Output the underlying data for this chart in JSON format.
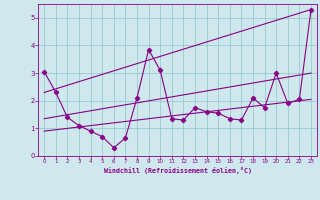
{
  "xlabel": "Windchill (Refroidissement éolien,°C)",
  "ylabel": "",
  "background_color": "#cee8ee",
  "line_color": "#880088",
  "grid_color": "#99cccc",
  "xlim": [
    -0.5,
    23.5
  ],
  "ylim": [
    0,
    5.5
  ],
  "xticks": [
    0,
    1,
    2,
    3,
    4,
    5,
    6,
    7,
    8,
    9,
    10,
    11,
    12,
    13,
    14,
    15,
    16,
    17,
    18,
    19,
    20,
    21,
    22,
    23
  ],
  "yticks": [
    0,
    1,
    2,
    3,
    4,
    5
  ],
  "series1_x": [
    0,
    1,
    2,
    3,
    4,
    5,
    6,
    7,
    8,
    9,
    10,
    11,
    12,
    13,
    14,
    15,
    16,
    17,
    18,
    19,
    20,
    21,
    22,
    23
  ],
  "series1_y": [
    3.05,
    2.3,
    1.4,
    1.1,
    0.9,
    0.7,
    0.3,
    0.65,
    2.1,
    3.85,
    3.1,
    1.35,
    1.3,
    1.75,
    1.6,
    1.55,
    1.35,
    1.3,
    2.1,
    1.75,
    3.0,
    1.9,
    2.05,
    5.3
  ],
  "series2_x": [
    0,
    23
  ],
  "series2_y": [
    2.3,
    5.3
  ],
  "series3_x": [
    0,
    23
  ],
  "series3_y": [
    1.35,
    3.0
  ],
  "series4_x": [
    0,
    23
  ],
  "series4_y": [
    0.9,
    2.05
  ]
}
